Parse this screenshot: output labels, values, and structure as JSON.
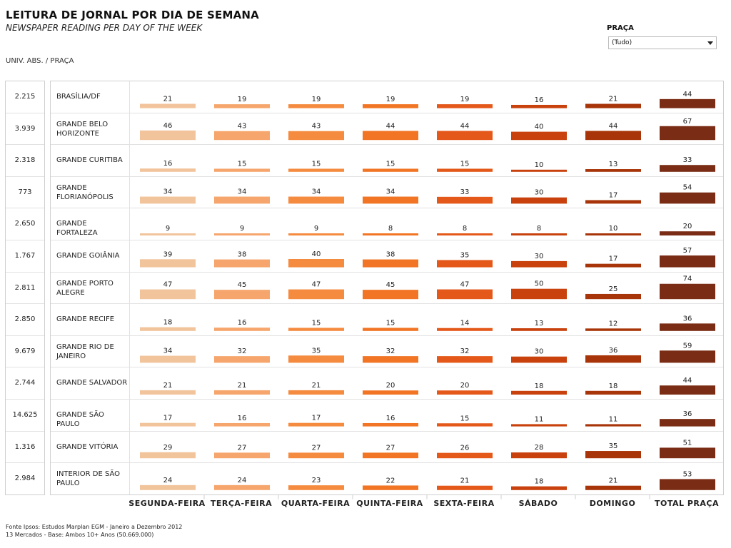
{
  "header": {
    "title": "LEITURA DE JORNAL POR DIA DE SEMANA",
    "subtitle": "NEWSPAPER READING PER DAY OF THE WEEK",
    "univ_label": "UNIV. ABS.  /  PRAÇA"
  },
  "filter": {
    "label": "PRAÇA",
    "value": "(Tudo)"
  },
  "footer": {
    "line1": "Fonte Ipsos: Estudos Marplan EGM - Janeiro a Dezembro 2012",
    "line2": "13 Mercados - Base: Ambos 10+ Anos (50.669.000)"
  },
  "colors": {
    "series": [
      "#f2c49c",
      "#f6a66c",
      "#f58b3f",
      "#f17524",
      "#e4581a",
      "#c9420d",
      "#a83509",
      "#7a2c14"
    ]
  },
  "chart_data": {
    "type": "bar",
    "categories": [
      "SEGUNDA-FEIRA",
      "TERÇA-FEIRA",
      "QUARTA-FEIRA",
      "QUINTA-FEIRA",
      "SEXTA-FEIRA",
      "SÁBADO",
      "DOMINGO",
      "TOTAL PRAÇA"
    ],
    "ylim": [
      0,
      100
    ],
    "rows": [
      {
        "city": [
          "BRASÍLIA/DF"
        ],
        "univ": "2.215",
        "values": [
          21,
          19,
          19,
          19,
          19,
          16,
          21,
          44
        ]
      },
      {
        "city": [
          "GRANDE BELO",
          "HORIZONTE"
        ],
        "univ": "3.939",
        "values": [
          46,
          43,
          43,
          44,
          44,
          40,
          44,
          67
        ]
      },
      {
        "city": [
          "GRANDE CURITIBA"
        ],
        "univ": "2.318",
        "values": [
          16,
          15,
          15,
          15,
          15,
          10,
          13,
          33
        ]
      },
      {
        "city": [
          "GRANDE",
          "FLORIANÓPOLIS"
        ],
        "univ": "773",
        "values": [
          34,
          34,
          34,
          34,
          33,
          30,
          17,
          54
        ]
      },
      {
        "city": [
          "GRANDE FORTALEZA"
        ],
        "univ": "2.650",
        "values": [
          9,
          9,
          9,
          8,
          8,
          8,
          10,
          20
        ]
      },
      {
        "city": [
          "GRANDE GOIÂNIA"
        ],
        "univ": "1.767",
        "values": [
          39,
          38,
          40,
          38,
          35,
          30,
          17,
          57
        ]
      },
      {
        "city": [
          "GRANDE PORTO",
          "ALEGRE"
        ],
        "univ": "2.811",
        "values": [
          47,
          45,
          47,
          45,
          47,
          50,
          25,
          74
        ]
      },
      {
        "city": [
          "GRANDE RECIFE"
        ],
        "univ": "2.850",
        "values": [
          18,
          16,
          15,
          15,
          14,
          13,
          12,
          36
        ]
      },
      {
        "city": [
          "GRANDE RIO DE",
          "JANEIRO"
        ],
        "univ": "9.679",
        "values": [
          34,
          32,
          35,
          32,
          32,
          30,
          36,
          59
        ]
      },
      {
        "city": [
          "GRANDE SALVADOR"
        ],
        "univ": "2.744",
        "values": [
          21,
          21,
          21,
          20,
          20,
          18,
          18,
          44
        ]
      },
      {
        "city": [
          "GRANDE SÃO PAULO"
        ],
        "univ": "14.625",
        "values": [
          17,
          16,
          17,
          16,
          15,
          11,
          11,
          36
        ]
      },
      {
        "city": [
          "GRANDE VITÓRIA"
        ],
        "univ": "1.316",
        "values": [
          29,
          27,
          27,
          27,
          26,
          28,
          35,
          51
        ]
      },
      {
        "city": [
          "INTERIOR DE SÃO",
          "PAULO"
        ],
        "univ": "2.984",
        "values": [
          24,
          24,
          23,
          22,
          21,
          18,
          21,
          53
        ]
      }
    ]
  }
}
